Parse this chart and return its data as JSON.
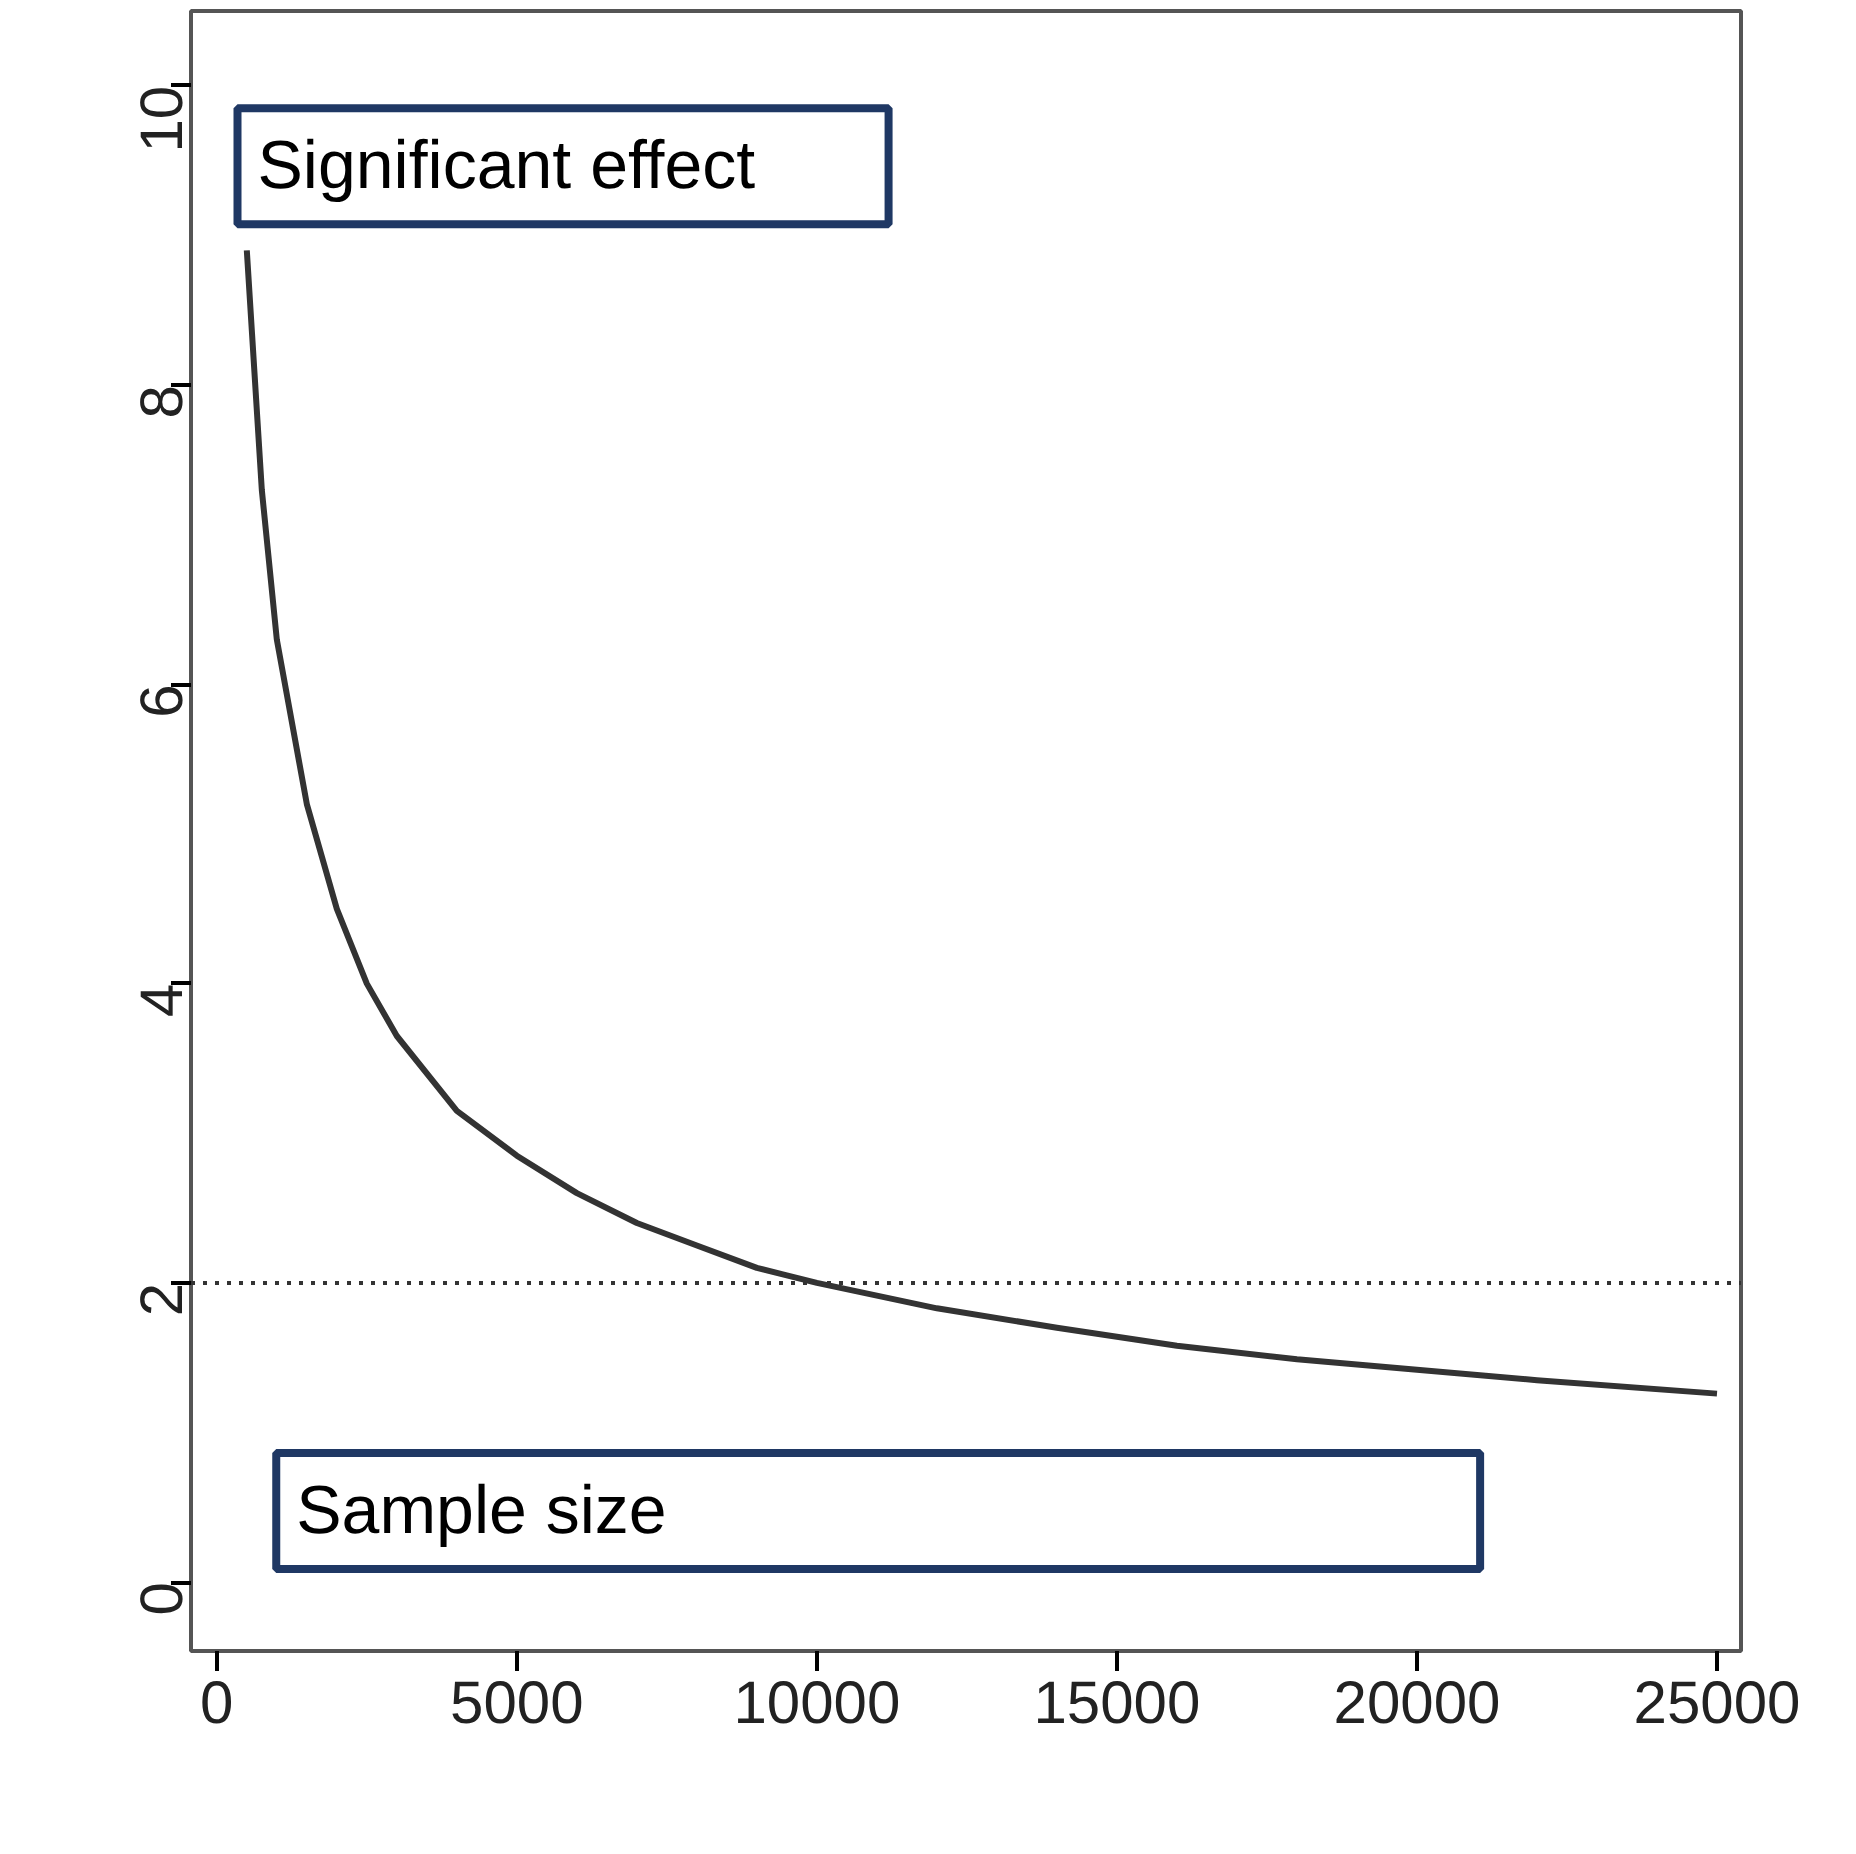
{
  "chart_data": {
    "type": "line",
    "x": [
      500,
      750,
      1000,
      1500,
      2000,
      2500,
      3000,
      4000,
      5000,
      6000,
      7000,
      8000,
      9000,
      10000,
      12000,
      14000,
      16000,
      18000,
      20000,
      22000,
      25000
    ],
    "series": [
      {
        "color": "#333333",
        "values": [
          8.9,
          7.3,
          6.3,
          5.2,
          4.5,
          4.0,
          3.65,
          3.15,
          2.85,
          2.6,
          2.4,
          2.25,
          2.1,
          2.0,
          1.83,
          1.7,
          1.58,
          1.49,
          1.42,
          1.35,
          1.26
        ]
      }
    ],
    "xlim": [
      -430,
      25400
    ],
    "ylim": [
      -0.46,
      10.5
    ],
    "xticks": [
      0,
      5000,
      10000,
      15000,
      20000,
      25000
    ],
    "yticks": [
      0,
      2,
      4,
      6,
      8,
      10
    ],
    "ref_lines": [
      {
        "axis": "y",
        "value": 2,
        "line_style": "dotted",
        "color": "#333333"
      }
    ],
    "annotations": [
      "Significant effect",
      "Sample size"
    ],
    "grid": false,
    "marker": "none",
    "line_style": "solid"
  }
}
